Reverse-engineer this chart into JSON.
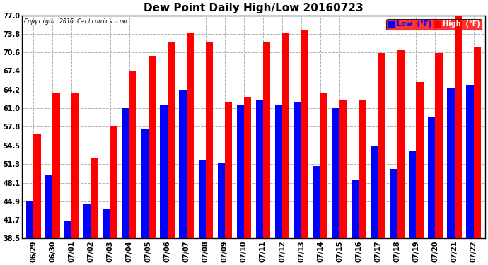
{
  "title": "Dew Point Daily High/Low 20160723",
  "copyright": "Copyright 2016 Cartronics.com",
  "dates": [
    "06/29",
    "06/30",
    "07/01",
    "07/02",
    "07/03",
    "07/04",
    "07/05",
    "07/06",
    "07/07",
    "07/08",
    "07/09",
    "07/10",
    "07/11",
    "07/12",
    "07/13",
    "07/14",
    "07/15",
    "07/16",
    "07/17",
    "07/18",
    "07/19",
    "07/20",
    "07/21",
    "07/22"
  ],
  "low": [
    45.0,
    49.5,
    41.5,
    44.5,
    43.5,
    61.0,
    57.5,
    61.5,
    64.0,
    52.0,
    51.5,
    61.5,
    62.5,
    61.5,
    62.0,
    51.0,
    61.0,
    48.5,
    54.5,
    50.5,
    53.5,
    59.5,
    64.5,
    65.0
  ],
  "high": [
    56.5,
    63.5,
    63.5,
    52.5,
    58.0,
    67.5,
    70.0,
    72.5,
    74.0,
    72.5,
    62.0,
    63.0,
    72.5,
    74.0,
    74.5,
    63.5,
    62.5,
    62.5,
    70.5,
    71.0,
    65.5,
    70.5,
    77.0,
    71.5
  ],
  "ybase": 38.5,
  "ylim": [
    38.5,
    77.0
  ],
  "yticks": [
    38.5,
    41.7,
    44.9,
    48.1,
    51.3,
    54.5,
    57.8,
    61.0,
    64.2,
    67.4,
    70.6,
    73.8,
    77.0
  ],
  "low_color": "#0000ff",
  "high_color": "#ff0000",
  "bg_color": "#ffffff",
  "grid_color": "#b0b0b0",
  "bar_width": 0.38,
  "title_fontsize": 11,
  "tick_fontsize": 7,
  "legend_label_low": "Low  (°F)",
  "legend_label_high": "High  (°F)"
}
